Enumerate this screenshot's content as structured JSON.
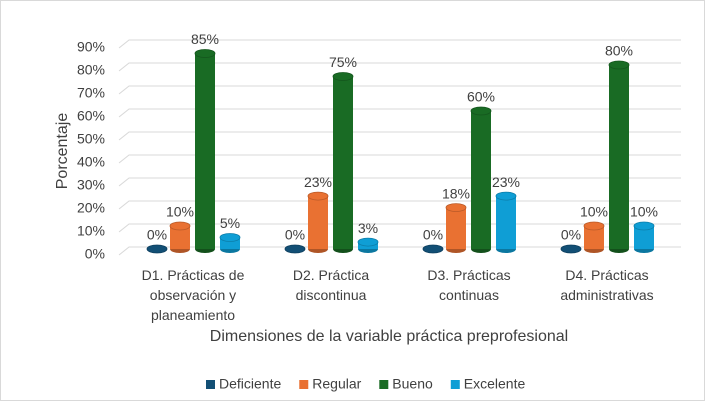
{
  "chart_data": {
    "type": "bar3d",
    "y_axis_label": "Porcentaje",
    "x_axis_label": "Dimensiones de la variable práctica preprofesional",
    "categories": [
      "D1. Prácticas de observación y planeamiento",
      "D2. Práctica discontinua",
      "D3. Prácticas continuas",
      "D4. Prácticas administrativas"
    ],
    "series": [
      {
        "name": "Deficiente",
        "color": "#124f75",
        "values": [
          0,
          0,
          0,
          0
        ],
        "value_labels": [
          "0%",
          "0%",
          "0%",
          "0%"
        ]
      },
      {
        "name": "Regular",
        "color": "#e97132",
        "values": [
          10,
          23,
          18,
          10
        ],
        "value_labels": [
          "10%",
          "23%",
          "18%",
          "10%"
        ]
      },
      {
        "name": "Bueno",
        "color": "#196b24",
        "values": [
          85,
          75,
          60,
          80
        ],
        "value_labels": [
          "85%",
          "75%",
          "60%",
          "80%"
        ]
      },
      {
        "name": "Excelente",
        "color": "#0f9ed5",
        "values": [
          5,
          3,
          23,
          10
        ],
        "value_labels": [
          "5%",
          "3%",
          "23%",
          "10%"
        ]
      }
    ],
    "ylim": [
      0,
      90
    ],
    "yticks": [
      {
        "value": 0,
        "label": "0%"
      },
      {
        "value": 10,
        "label": "10%"
      },
      {
        "value": 20,
        "label": "20%"
      },
      {
        "value": 30,
        "label": "30%"
      },
      {
        "value": 40,
        "label": "40%"
      },
      {
        "value": 50,
        "label": "50%"
      },
      {
        "value": 60,
        "label": "60%"
      },
      {
        "value": 70,
        "label": "70%"
      },
      {
        "value": 80,
        "label": "80%"
      },
      {
        "value": 90,
        "label": "90%"
      }
    ],
    "grid": true,
    "legend": "bottom"
  }
}
